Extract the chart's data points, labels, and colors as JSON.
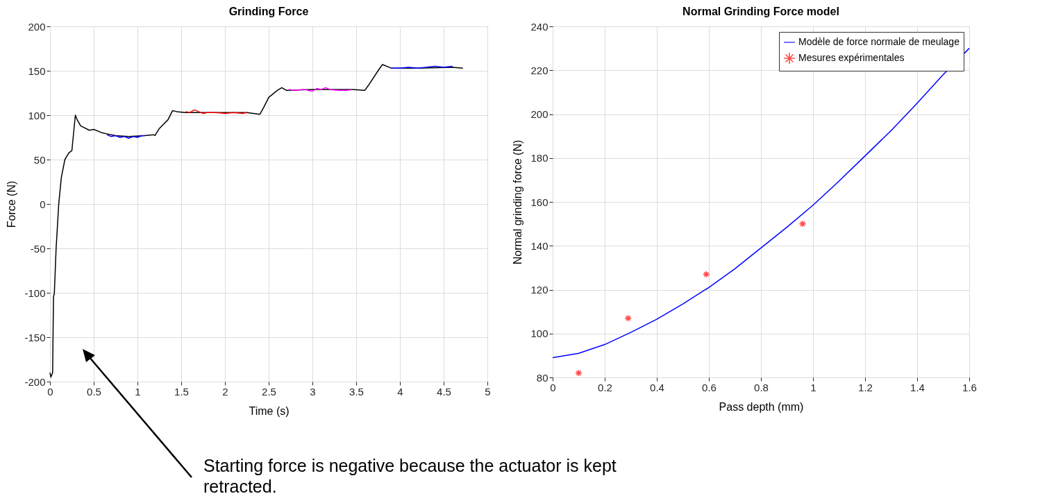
{
  "chart_data": [
    {
      "type": "line",
      "title": "Grinding Force",
      "xlabel": "Time (s)",
      "ylabel": "Force (N)",
      "xlim": [
        0,
        5
      ],
      "xticks": [
        0,
        0.5,
        1,
        1.5,
        2,
        2.5,
        3,
        3.5,
        4,
        4.5,
        5
      ],
      "ylim": [
        -200,
        200
      ],
      "yticks": [
        -200,
        -150,
        -100,
        -50,
        0,
        50,
        100,
        150,
        200
      ],
      "grid": true,
      "annotations": [
        "Starting force is negative because the actuator is kept retracted."
      ],
      "series": [
        {
          "color": "#000000",
          "x": [
            0,
            0.01,
            0.03,
            0.04,
            0.05,
            0.07,
            0.1,
            0.13,
            0.17,
            0.2,
            0.22,
            0.25,
            0.29,
            0.31,
            0.35,
            0.45,
            0.5,
            0.6,
            0.65,
            0.75,
            0.9,
            1.08,
            1.18,
            1.2,
            1.25,
            1.35,
            1.4,
            1.45,
            1.55,
            1.8,
            2.25,
            2.4,
            2.45,
            2.5,
            2.6,
            2.65,
            2.7,
            3.0,
            3.45,
            3.6,
            3.65,
            3.75,
            3.8,
            3.9,
            4.2,
            4.6,
            4.72
          ],
          "values": [
            -190,
            -195,
            -190,
            -105,
            -100,
            -50,
            0,
            30,
            50,
            55,
            58,
            60,
            100,
            95,
            88,
            83,
            84,
            80,
            79,
            77,
            76,
            77,
            78,
            77,
            85,
            95,
            105,
            104,
            103,
            103,
            103,
            101,
            110,
            120,
            128,
            131,
            128,
            129,
            129,
            128,
            135,
            150,
            157,
            153,
            153,
            154,
            153
          ]
        },
        {
          "color": "#0000ff",
          "x": [
            0.65,
            0.7,
            0.75,
            0.8,
            0.85,
            0.9,
            0.95,
            1.0,
            1.05,
            1.08
          ],
          "values": [
            78,
            76,
            77,
            75,
            76,
            74,
            76,
            75,
            77,
            77
          ]
        },
        {
          "color": "#ff0000",
          "x": [
            1.55,
            1.6,
            1.65,
            1.7,
            1.75,
            1.8,
            1.9,
            2.0,
            2.1,
            2.2,
            2.25
          ],
          "values": [
            104,
            103,
            106,
            104,
            102,
            103,
            103,
            102,
            103,
            102,
            103
          ]
        },
        {
          "color": "#ff00ff",
          "x": [
            2.73,
            2.8,
            2.9,
            3.0,
            3.05,
            3.1,
            3.15,
            3.2,
            3.3,
            3.4,
            3.45
          ],
          "values": [
            129,
            128,
            129,
            127,
            130,
            129,
            131,
            129,
            128,
            128,
            129
          ]
        },
        {
          "color": "#0000ff",
          "x": [
            3.9,
            4.0,
            4.1,
            4.2,
            4.3,
            4.4,
            4.5,
            4.6
          ],
          "values": [
            153,
            153,
            154,
            153,
            154,
            155,
            154,
            155
          ]
        }
      ]
    },
    {
      "type": "line",
      "title": "Normal Grinding Force model",
      "xlabel": "Pass depth (mm)",
      "ylabel": "Normal grinding force (N)",
      "xlim": [
        0,
        1.6
      ],
      "xticks": [
        0,
        0.2,
        0.4,
        0.6,
        0.8,
        1,
        1.2,
        1.4,
        1.6
      ],
      "ylim": [
        80,
        240
      ],
      "yticks": [
        80,
        100,
        120,
        140,
        160,
        180,
        200,
        220,
        240
      ],
      "grid": true,
      "legend": "top right",
      "series": [
        {
          "name": "Modèle de force normale de meulage",
          "type": "line",
          "color": "#0000ff",
          "x": [
            0,
            0.1,
            0.2,
            0.3,
            0.4,
            0.5,
            0.6,
            0.7,
            0.8,
            0.9,
            1.0,
            1.1,
            1.2,
            1.3,
            1.4,
            1.5,
            1.6
          ],
          "values": [
            89,
            91,
            95,
            100.5,
            106.5,
            113.5,
            121,
            129.5,
            139,
            148.5,
            158.5,
            169.5,
            181,
            192.5,
            205,
            218,
            230
          ]
        },
        {
          "name": "Mesures expérimentales",
          "type": "scatter",
          "marker": "cross",
          "color": "#ff0000",
          "x": [
            0.1,
            0.29,
            0.59,
            0.96
          ],
          "values": [
            82,
            107,
            127,
            150
          ]
        }
      ]
    }
  ]
}
